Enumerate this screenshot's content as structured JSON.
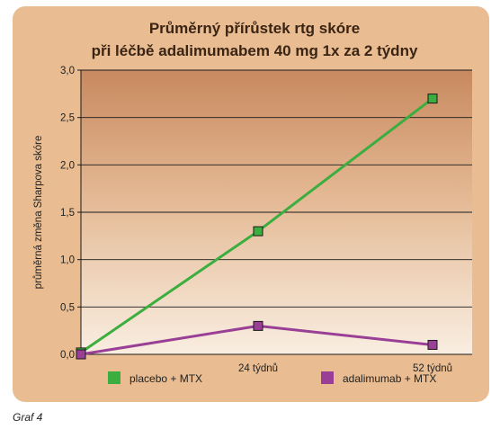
{
  "chart_data": {
    "type": "line",
    "title_lines": [
      "Průměrný přírůstek rtg skóre",
      "při léčbě adalimumabem 40 mg 1x za 2 týdny"
    ],
    "ylabel": "průměrná změna Sharpova skóre",
    "xlabel": "",
    "x_tick_labels": [
      "",
      "24 týdnů",
      "52 týdnů"
    ],
    "y_tick_labels": [
      "0,0",
      "0,5",
      "1,0",
      "1,5",
      "2,0",
      "2,5",
      "3,0"
    ],
    "y_ticks": [
      0,
      0.5,
      1.0,
      1.5,
      2.0,
      2.5,
      3.0
    ],
    "ylim": [
      0,
      3.0
    ],
    "x": [
      0,
      24,
      52
    ],
    "series": [
      {
        "name": "placebo + MTX",
        "values": [
          0.02,
          1.3,
          2.7
        ],
        "color": "#3bae3f"
      },
      {
        "name": "adalimumab + MTX",
        "values": [
          0.0,
          0.3,
          0.1
        ],
        "color": "#9a3f96"
      }
    ],
    "grid": true,
    "legend_position": "bottom"
  },
  "caption": "Graf 4"
}
